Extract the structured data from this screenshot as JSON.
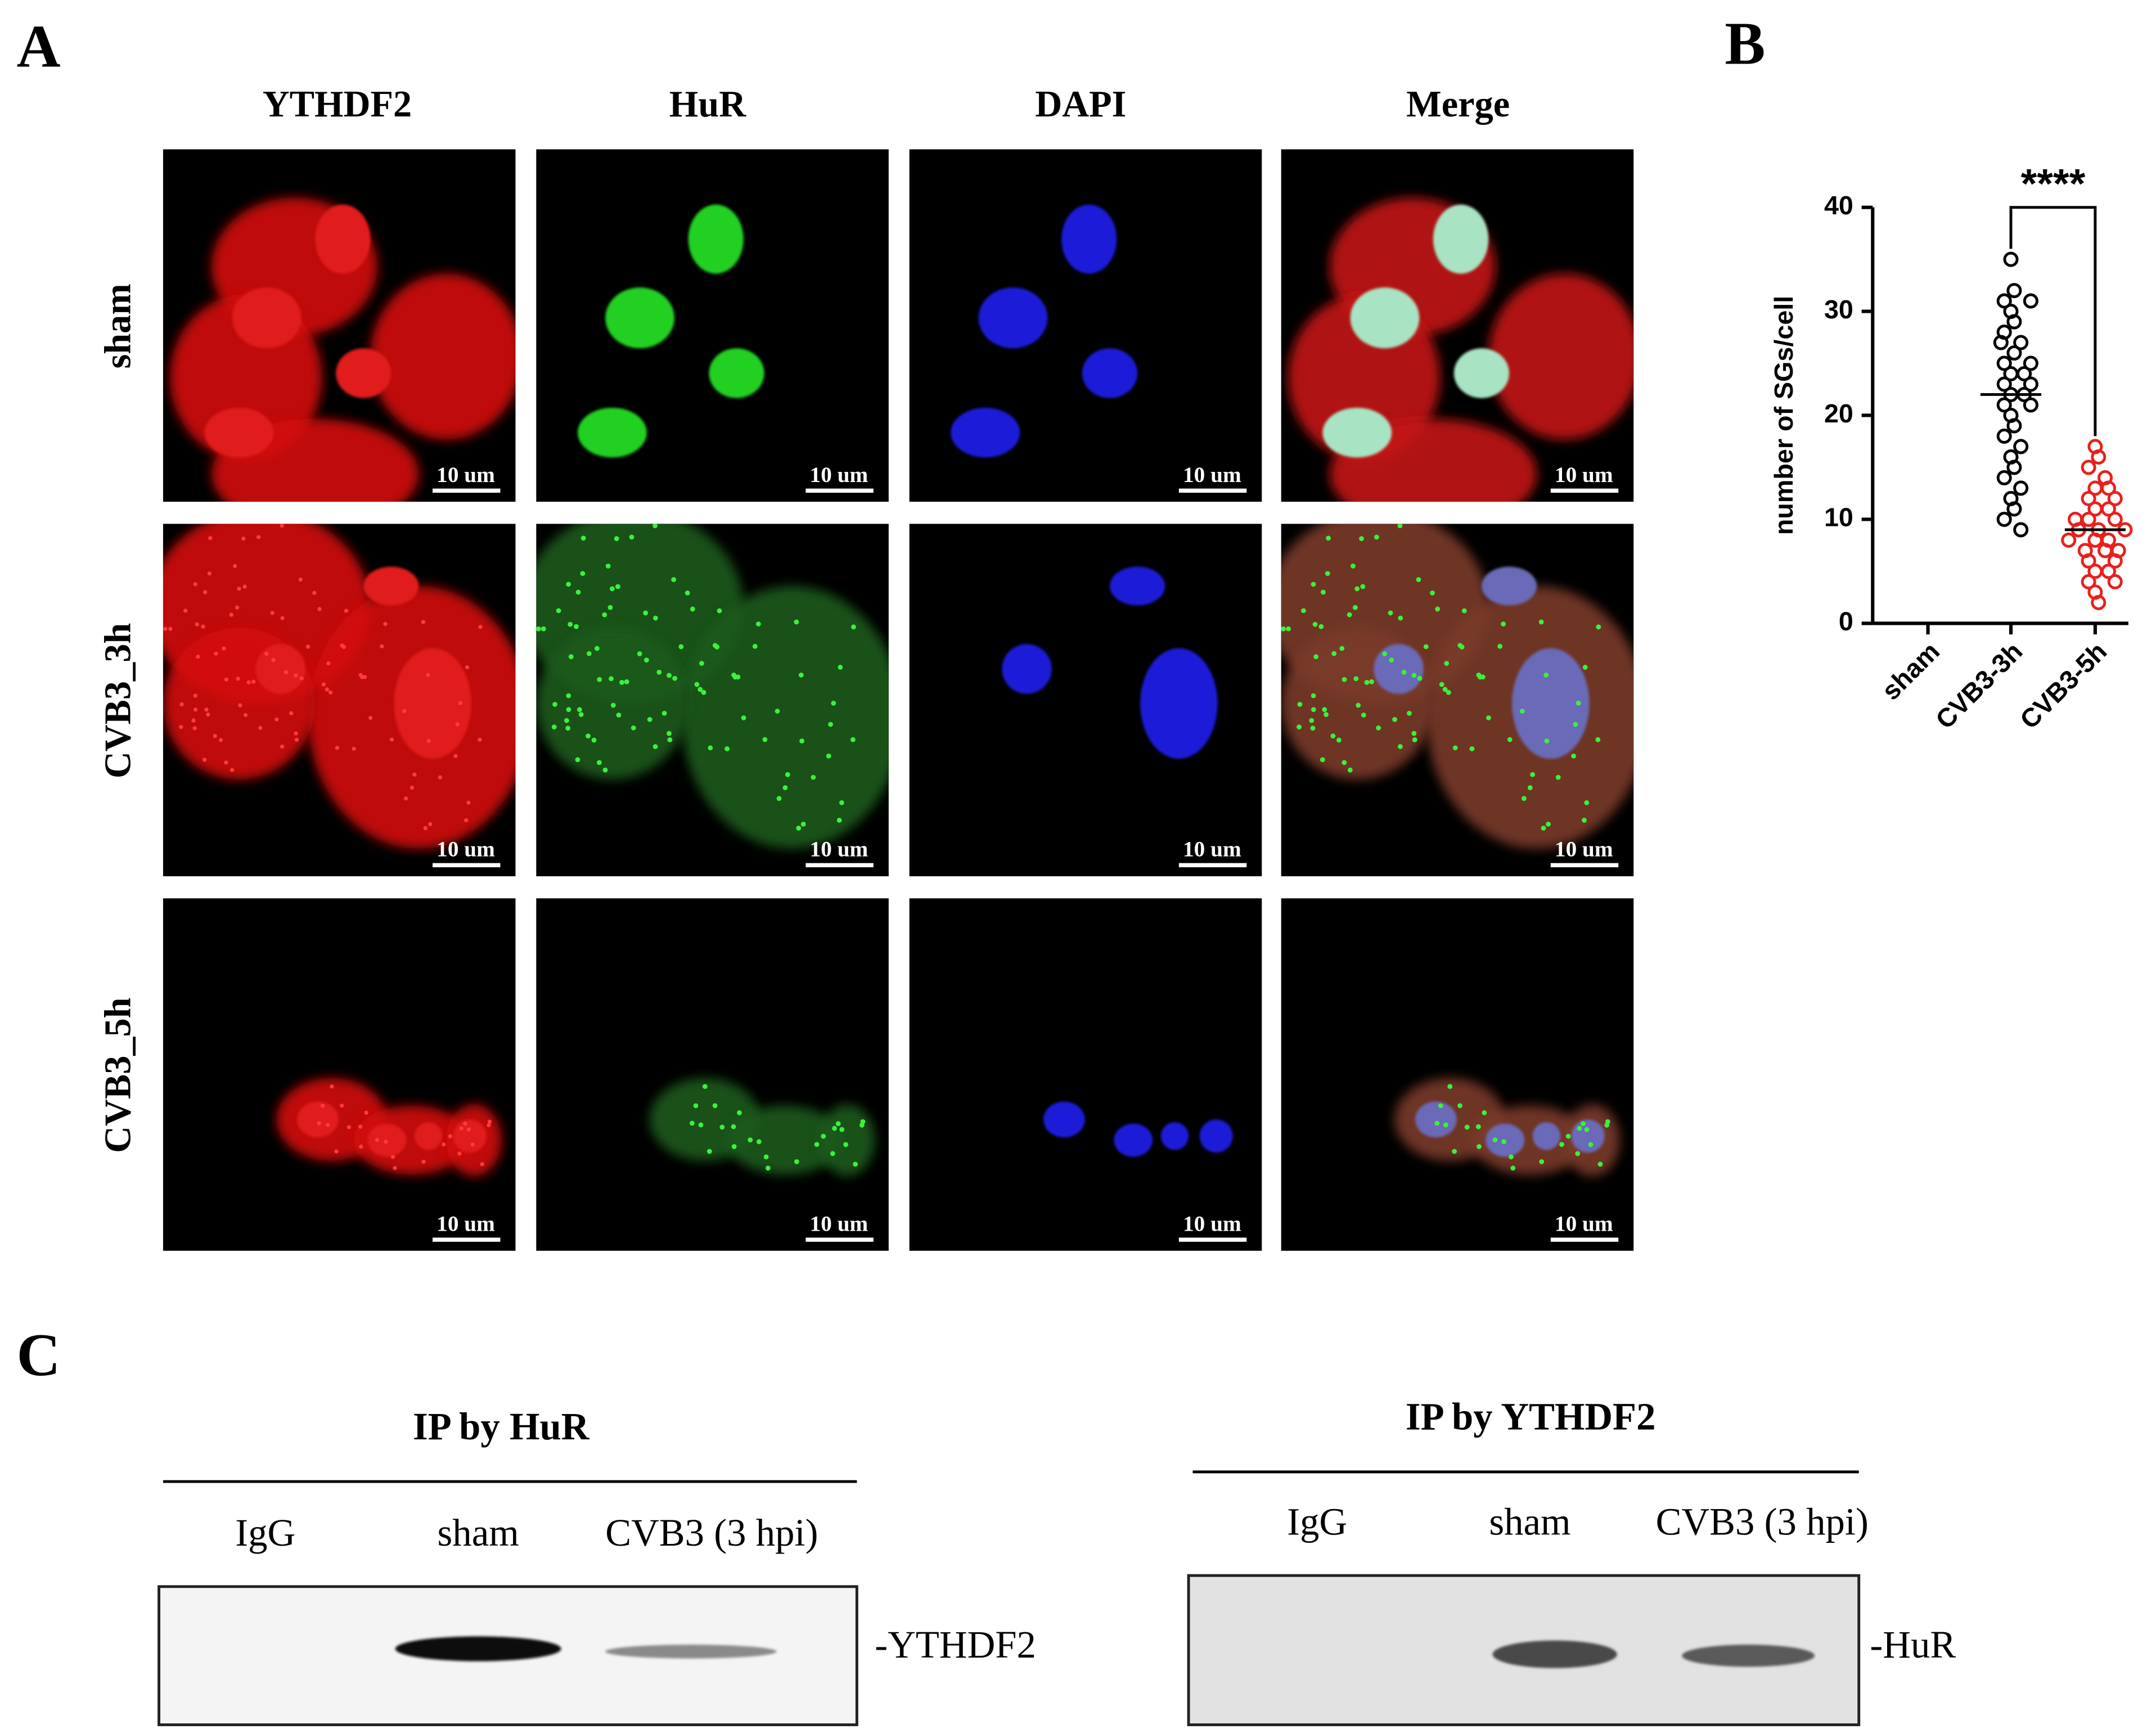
{
  "panel_a": {
    "label": "A",
    "columns": [
      "YTHDF2",
      "HuR",
      "DAPI",
      "Merge"
    ],
    "rows": [
      "sham",
      "CVB3_3h",
      "CVB3_5h"
    ],
    "scale_bar": "10 um"
  },
  "panel_b": {
    "label": "B"
  },
  "chart_data": {
    "type": "dotplot",
    "y_label": "number of SGs/cell",
    "annotation": "****",
    "categories": [
      "sham",
      "CVB3-3h",
      "CVB3-5h"
    ],
    "values": [
      [],
      [
        35,
        32,
        31,
        31,
        30,
        29,
        28,
        27,
        27,
        26,
        25,
        25,
        24,
        24,
        23,
        23,
        22,
        22,
        21,
        21,
        20,
        19,
        18,
        17,
        16,
        15,
        14,
        13,
        12,
        11,
        10,
        9
      ],
      [
        17,
        16,
        15,
        14,
        13,
        13,
        12,
        12,
        11,
        11,
        10,
        10,
        10,
        9,
        9,
        9,
        8,
        8,
        8,
        7,
        7,
        7,
        6,
        6,
        5,
        5,
        4,
        4,
        3,
        2
      ]
    ],
    "means": [
      null,
      22,
      9
    ],
    "colors": [
      "#000000",
      "#000000",
      "#e8201c"
    ],
    "ylim": [
      0,
      40
    ],
    "yticks": [
      0,
      10,
      20,
      30,
      40
    ]
  },
  "panel_c": {
    "label": "C",
    "blots": [
      {
        "title": "IP by HuR",
        "lanes": [
          "IgG",
          "sham",
          "CVB3 (3 hpi)"
        ],
        "band": "-YTHDF2"
      },
      {
        "title": "IP by YTHDF2",
        "lanes": [
          "IgG",
          "sham",
          "CVB3 (3 hpi)"
        ],
        "band": "-HuR"
      }
    ]
  }
}
